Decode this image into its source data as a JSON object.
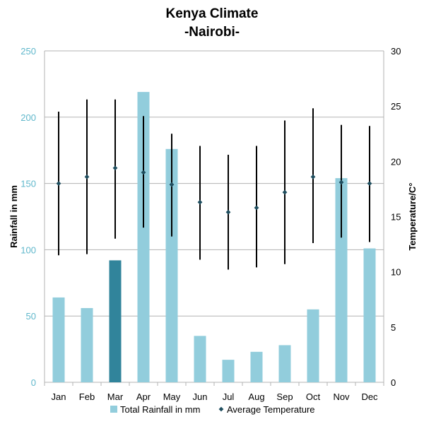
{
  "chart_data": {
    "type": "bar",
    "title": "Kenya Climate",
    "subtitle": "-Nairobi-",
    "categories": [
      "Jan",
      "Feb",
      "Mar",
      "Apr",
      "May",
      "Jun",
      "Jul",
      "Aug",
      "Sep",
      "Oct",
      "Nov",
      "Dec"
    ],
    "ylabel": "Rainfall in mm",
    "y2label": "Temperature/C°",
    "ylim": [
      0,
      250
    ],
    "y2lim": [
      0,
      30
    ],
    "yticks": [
      "0",
      "50",
      "100",
      "150",
      "200",
      "250"
    ],
    "y2ticks": [
      "0",
      "5",
      "10",
      "15",
      "20",
      "25",
      "30"
    ],
    "grid": true,
    "legend_position": "bottom",
    "series": [
      {
        "name": "Total Rainfall in mm",
        "type": "bar",
        "axis": "left",
        "color": "#92cddc",
        "highlight_color": "#31849b",
        "highlight_index": 2,
        "values": [
          64,
          56,
          92,
          219,
          176,
          35,
          17,
          23,
          28,
          55,
          154,
          101
        ]
      },
      {
        "name": "Average Temperature",
        "type": "scatter",
        "axis": "right",
        "color": "#1f4e5f",
        "values": [
          18,
          18.6,
          19.4,
          19,
          17.9,
          16.3,
          15.4,
          15.8,
          17.2,
          18.6,
          18.1,
          18
        ],
        "high": [
          24.5,
          25.6,
          25.6,
          24.1,
          22.5,
          21.4,
          20.6,
          21.4,
          23.7,
          24.8,
          23.3,
          23.2
        ],
        "low": [
          11.5,
          11.6,
          13,
          14,
          13.2,
          11.1,
          10.2,
          10.4,
          10.7,
          12.6,
          13.1,
          12.7
        ]
      }
    ]
  }
}
